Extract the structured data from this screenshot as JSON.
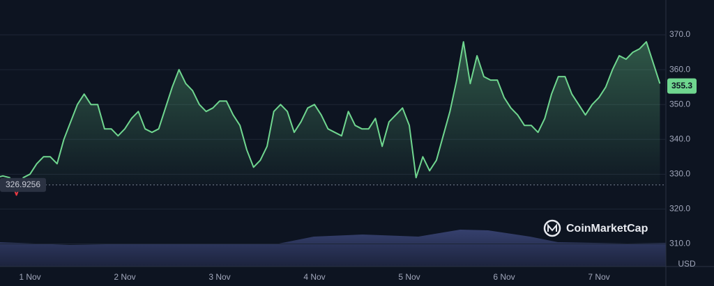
{
  "chart_data": {
    "type": "line",
    "categories": [
      null,
      null,
      null,
      null,
      null,
      "1 Nov",
      null,
      null,
      null,
      null,
      null,
      null,
      null,
      null,
      null,
      null,
      null,
      null,
      null,
      "2 Nov",
      null,
      null,
      null,
      null,
      null,
      null,
      null,
      null,
      null,
      null,
      null,
      null,
      null,
      "3 Nov",
      null,
      null,
      null,
      null,
      null,
      null,
      null,
      null,
      null,
      null,
      null,
      null,
      null,
      "4 Nov",
      null,
      null,
      null,
      null,
      null,
      null,
      null,
      null,
      null,
      null,
      null,
      null,
      null,
      "5 Nov",
      null,
      null,
      null,
      null,
      null,
      null,
      null,
      null,
      null,
      null,
      null,
      null,
      null,
      "6 Nov",
      null,
      null,
      null,
      null,
      null,
      null,
      null,
      null,
      null,
      null,
      null,
      null,
      null,
      "7 Nov",
      null,
      null,
      null,
      null,
      null,
      null,
      null,
      null,
      null
    ],
    "series": [
      {
        "color": "#6fd68f",
        "down_color": "#ea3943",
        "values": [
          329,
          329.5,
          329,
          324,
          329,
          330,
          333,
          335,
          335,
          333,
          340,
          345,
          350,
          353,
          350,
          350,
          343,
          343,
          341,
          343,
          346,
          348,
          343,
          342,
          343,
          349,
          355,
          360,
          356,
          354,
          350,
          348,
          349,
          351,
          351,
          347,
          344,
          337,
          332,
          334,
          338,
          348,
          350,
          348,
          342,
          345,
          349,
          350,
          347,
          343,
          342,
          341,
          348,
          344,
          343,
          343,
          346,
          338,
          345,
          347,
          349,
          344,
          329,
          335,
          331,
          334,
          341,
          348,
          357,
          368,
          356,
          364,
          358,
          357,
          357,
          352,
          349,
          347,
          344,
          344,
          342,
          346,
          353,
          358,
          358,
          353,
          350,
          347,
          350,
          352,
          355,
          360,
          364,
          363,
          365,
          366,
          368,
          362,
          356
        ]
      }
    ],
    "baseline": 326.9256,
    "current_price": 355.3,
    "ylim": [
      303.5,
      378
    ],
    "yticks": [
      {
        "value": 310,
        "label": "310.0"
      },
      {
        "value": 320,
        "label": "320.0"
      },
      {
        "value": 330,
        "label": "330.0"
      },
      {
        "value": 340,
        "label": "340.0"
      },
      {
        "value": 350,
        "label": "350.0"
      },
      {
        "value": 360,
        "label": "360.0"
      },
      {
        "value": 370,
        "label": "370.0"
      }
    ],
    "y_axis_label": "USD",
    "watermark": "CoinMarketCap",
    "grid": true
  }
}
